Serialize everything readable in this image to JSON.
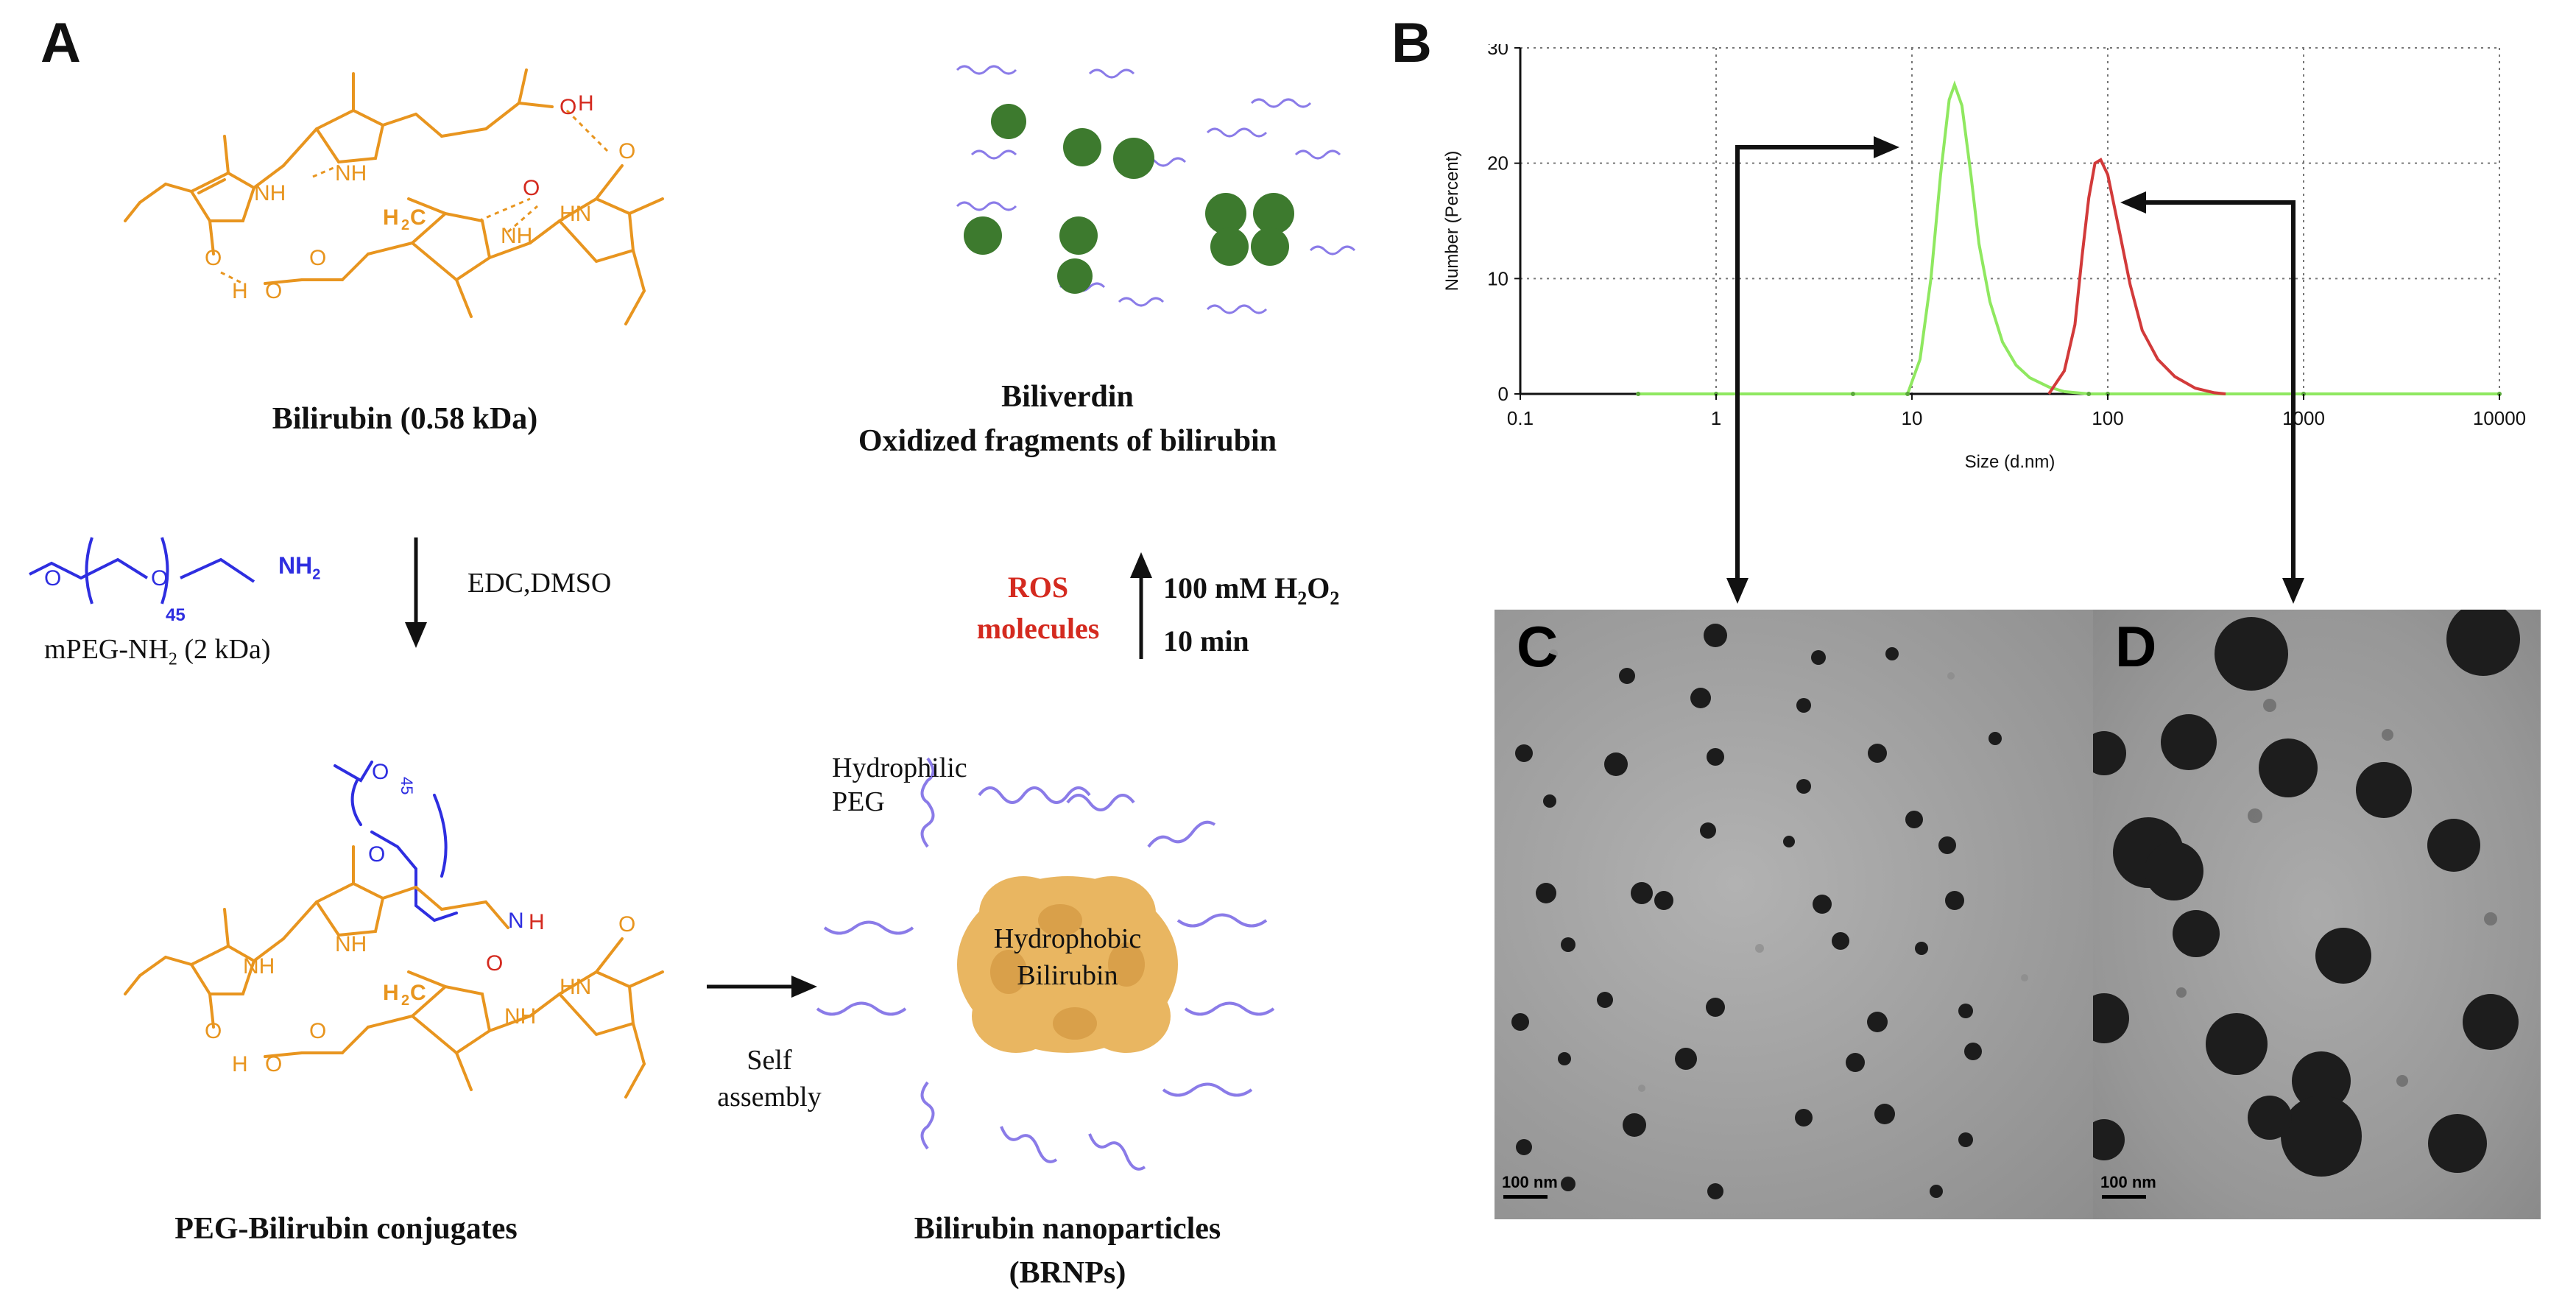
{
  "panels": {
    "a_label": "A",
    "b_label": "B",
    "c_label": "C",
    "d_label": "D"
  },
  "scheme": {
    "bilirubin_caption": "Bilirubin (0.58 kDa)",
    "biliverdin_caption_1": "Biliverdin",
    "biliverdin_caption_2": "Oxidized fragments of bilirubin",
    "mpeg_caption": "mPEG-NH",
    "mpeg_sub": "2",
    "mpeg_suffix": " (2 kDa)",
    "reaction_reagents": "EDC,DMSO",
    "ros_line_1": "ROS",
    "ros_line_2": "molecules",
    "h2o2_prefix": "100 mM H",
    "h2o2_sub1": "2",
    "h2o2_o": "O",
    "h2o2_sub2": "2",
    "h2o2_time": "10 min",
    "peg_repeat": "45",
    "nh2_label": "NH",
    "nh2_sub": "2",
    "conjugate_caption": "PEG-Bilirubin conjugates",
    "self_assembly_1": "Self",
    "self_assembly_2": "assembly",
    "hydrophilic_1": "Hydrophilic",
    "hydrophilic_2": "PEG",
    "hydrophobic_1": "Hydrophobic",
    "hydrophobic_2": "Bilirubin",
    "brnp_caption_1": "Bilirubin nanoparticles",
    "brnp_caption_2": "(BRNPs)"
  },
  "tem": {
    "c_scalebar": "100 nm",
    "d_scalebar": "100 nm"
  },
  "colors": {
    "bilirubin": "#e8951f",
    "peg": "#2e2ee0",
    "ros": "#d42a1f",
    "green_curve": "#8fe860",
    "red_curve": "#d23a3a",
    "nanoparticle_core": "#e9b661",
    "peg_chain": "#8a7be8",
    "fragment": "#3d7a2e"
  },
  "chart_data": {
    "type": "line",
    "xscale": "log",
    "xlabel": "Size (d.nm)",
    "ylabel": "Number (Percent)",
    "xlim": [
      0.1,
      10000
    ],
    "ylim": [
      0,
      30
    ],
    "xticks": [
      "0.1",
      "1",
      "10",
      "100",
      "1000",
      "10000"
    ],
    "yticks": [
      "0",
      "10",
      "20",
      "30"
    ],
    "grid": true,
    "series": [
      {
        "color": "#8fe860",
        "x": [
          0.4,
          1,
          5,
          9.5,
          11,
          12.5,
          14,
          15.5,
          16.5,
          18,
          20,
          22,
          25,
          29,
          34,
          40,
          50,
          60,
          80,
          100,
          1000,
          10000
        ],
        "y": [
          0,
          0,
          0,
          0,
          3,
          10,
          19,
          25.5,
          26.8,
          25,
          19,
          13,
          8,
          4.5,
          2.5,
          1.4,
          0.6,
          0.2,
          0,
          0,
          0,
          0
        ]
      },
      {
        "color": "#d23a3a",
        "x": [
          50,
          60,
          68,
          74,
          80,
          86,
          92,
          100,
          115,
          130,
          150,
          180,
          220,
          280,
          350,
          400
        ],
        "y": [
          0,
          2,
          6,
          12,
          17,
          20,
          20.3,
          19,
          14,
          9.5,
          5.5,
          3,
          1.5,
          0.5,
          0.1,
          0
        ]
      }
    ]
  }
}
